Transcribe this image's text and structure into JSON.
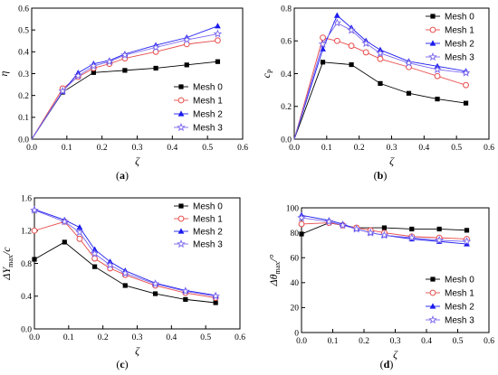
{
  "chart_data": [
    {
      "type": "line",
      "caption": "a",
      "xlabel": "ζ",
      "ylabel": "η",
      "xlim": [
        0.0,
        0.6
      ],
      "ylim": [
        0.0,
        0.6
      ],
      "xticks": [
        "0.0",
        "0.1",
        "0.2",
        "0.3",
        "0.4",
        "0.5",
        "0.6"
      ],
      "yticks": [
        "0.0",
        "0.1",
        "0.2",
        "0.3",
        "0.4",
        "0.5",
        "0.6"
      ],
      "legend": "center-right",
      "series": [
        {
          "name": "Mesh 0",
          "color": "#000000",
          "marker": "square-filled",
          "x": [
            0,
            0.088,
            0.176,
            0.265,
            0.353,
            0.441,
            0.529
          ],
          "y": [
            0.0,
            0.215,
            0.305,
            0.315,
            0.325,
            0.34,
            0.355
          ]
        },
        {
          "name": "Mesh 1",
          "color": "#e84c4c",
          "marker": "circle-open",
          "x": [
            0,
            0.088,
            0.132,
            0.176,
            0.221,
            0.265,
            0.353,
            0.441,
            0.529
          ],
          "y": [
            0.0,
            0.232,
            0.285,
            0.325,
            0.345,
            0.37,
            0.4,
            0.435,
            0.452
          ]
        },
        {
          "name": "Mesh 2",
          "color": "#1a1aee",
          "marker": "triangle-filled",
          "x": [
            0,
            0.088,
            0.132,
            0.176,
            0.221,
            0.265,
            0.353,
            0.441,
            0.529
          ],
          "y": [
            0.0,
            0.218,
            0.303,
            0.345,
            0.36,
            0.39,
            0.43,
            0.465,
            0.518
          ]
        },
        {
          "name": "Mesh 3",
          "color": "#7b68ee",
          "marker": "star-open",
          "x": [
            0,
            0.088,
            0.132,
            0.176,
            0.221,
            0.265,
            0.353,
            0.441,
            0.529
          ],
          "y": [
            0.0,
            0.22,
            0.29,
            0.335,
            0.355,
            0.385,
            0.42,
            0.455,
            0.482
          ]
        }
      ]
    },
    {
      "type": "line",
      "caption": "b",
      "xlabel": "ζ",
      "ylabel": "c",
      "ylabel_sub": "P",
      "xlim": [
        0.0,
        0.6
      ],
      "ylim": [
        0.0,
        0.8
      ],
      "xticks": [
        "0.0",
        "0.1",
        "0.2",
        "0.3",
        "0.4",
        "0.5",
        "0.6"
      ],
      "yticks": [
        "0.0",
        "0.2",
        "0.4",
        "0.6",
        "0.8"
      ],
      "legend": "top-right",
      "series": [
        {
          "name": "Mesh 0",
          "color": "#000000",
          "marker": "square-filled",
          "x": [
            0,
            0.088,
            0.176,
            0.265,
            0.353,
            0.441,
            0.529
          ],
          "y": [
            0.0,
            0.47,
            0.455,
            0.34,
            0.28,
            0.245,
            0.22
          ]
        },
        {
          "name": "Mesh 1",
          "color": "#e84c4c",
          "marker": "circle-open",
          "x": [
            0,
            0.088,
            0.132,
            0.176,
            0.221,
            0.265,
            0.353,
            0.441,
            0.529
          ],
          "y": [
            0.0,
            0.62,
            0.6,
            0.57,
            0.53,
            0.49,
            0.44,
            0.385,
            0.33
          ]
        },
        {
          "name": "Mesh 2",
          "color": "#1a1aee",
          "marker": "triangle-filled",
          "x": [
            0,
            0.088,
            0.132,
            0.176,
            0.221,
            0.265,
            0.353,
            0.441,
            0.529
          ],
          "y": [
            0.0,
            0.55,
            0.755,
            0.68,
            0.6,
            0.545,
            0.475,
            0.445,
            0.415
          ]
        },
        {
          "name": "Mesh 3",
          "color": "#7b68ee",
          "marker": "star-open",
          "x": [
            0,
            0.088,
            0.132,
            0.176,
            0.221,
            0.265,
            0.353,
            0.441,
            0.529
          ],
          "y": [
            0.0,
            0.58,
            0.71,
            0.665,
            0.585,
            0.525,
            0.465,
            0.425,
            0.405
          ]
        }
      ]
    },
    {
      "type": "line",
      "caption": "c",
      "xlabel": "ζ",
      "ylabel": "ΔY",
      "ylabel_sub": "max",
      "ylabel_suffix": "/c",
      "xlim": [
        0.0,
        0.6
      ],
      "ylim": [
        0.0,
        1.6
      ],
      "xticks": [
        "0.0",
        "0.1",
        "0.2",
        "0.3",
        "0.4",
        "0.5",
        "0.6"
      ],
      "yticks": [
        "0.0",
        "0.4",
        "0.8",
        "1.2",
        "1.6"
      ],
      "legend": "top-right",
      "series": [
        {
          "name": "Mesh 0",
          "color": "#000000",
          "marker": "square-filled",
          "x": [
            0,
            0.088,
            0.176,
            0.265,
            0.353,
            0.441,
            0.529
          ],
          "y": [
            0.85,
            1.06,
            0.76,
            0.53,
            0.43,
            0.36,
            0.32
          ]
        },
        {
          "name": "Mesh 1",
          "color": "#e84c4c",
          "marker": "circle-open",
          "x": [
            0,
            0.088,
            0.132,
            0.176,
            0.221,
            0.265,
            0.353,
            0.441,
            0.529
          ],
          "y": [
            1.2,
            1.31,
            1.1,
            0.86,
            0.74,
            0.66,
            0.53,
            0.44,
            0.38
          ]
        },
        {
          "name": "Mesh 2",
          "color": "#1a1aee",
          "marker": "triangle-filled",
          "x": [
            0,
            0.088,
            0.132,
            0.176,
            0.221,
            0.265,
            0.353,
            0.441,
            0.529
          ],
          "y": [
            1.46,
            1.33,
            1.24,
            0.97,
            0.82,
            0.71,
            0.56,
            0.47,
            0.41
          ]
        },
        {
          "name": "Mesh 3",
          "color": "#7b68ee",
          "marker": "star-open",
          "x": [
            0,
            0.088,
            0.132,
            0.176,
            0.221,
            0.265,
            0.353,
            0.441,
            0.529
          ],
          "y": [
            1.45,
            1.31,
            1.18,
            0.92,
            0.78,
            0.68,
            0.55,
            0.46,
            0.4
          ]
        }
      ]
    },
    {
      "type": "line",
      "caption": "d",
      "xlabel": "ζ",
      "ylabel": "Δθ",
      "ylabel_sub": "max",
      "ylabel_suffix": "/°",
      "xlim": [
        0.0,
        0.6
      ],
      "ylim": [
        0,
        100
      ],
      "xticks": [
        "0.0",
        "0.1",
        "0.2",
        "0.3",
        "0.4",
        "0.5",
        "0.6"
      ],
      "yticks": [
        "0",
        "20",
        "40",
        "60",
        "80",
        "100"
      ],
      "legend": "bottom-right",
      "series": [
        {
          "name": "Mesh 0",
          "color": "#000000",
          "marker": "square-filled",
          "x": [
            0,
            0.088,
            0.176,
            0.265,
            0.353,
            0.441,
            0.529
          ],
          "y": [
            79,
            88,
            84,
            84,
            83,
            83,
            82
          ]
        },
        {
          "name": "Mesh 1",
          "color": "#e84c4c",
          "marker": "circle-open",
          "x": [
            0,
            0.088,
            0.132,
            0.176,
            0.221,
            0.265,
            0.353,
            0.441,
            0.529
          ],
          "y": [
            87,
            88,
            86,
            84,
            82,
            80,
            77,
            76,
            75
          ]
        },
        {
          "name": "Mesh 2",
          "color": "#1a1aee",
          "marker": "triangle-filled",
          "x": [
            0,
            0.088,
            0.132,
            0.176,
            0.221,
            0.265,
            0.353,
            0.441,
            0.529
          ],
          "y": [
            94,
            90,
            87,
            83,
            80,
            78,
            75,
            73,
            71
          ]
        },
        {
          "name": "Mesh 3",
          "color": "#7b68ee",
          "marker": "star-open",
          "x": [
            0,
            0.088,
            0.132,
            0.176,
            0.221,
            0.265,
            0.353,
            0.441,
            0.529
          ],
          "y": [
            92,
            89,
            86,
            83,
            80,
            78,
            76,
            74,
            73
          ]
        }
      ]
    }
  ]
}
